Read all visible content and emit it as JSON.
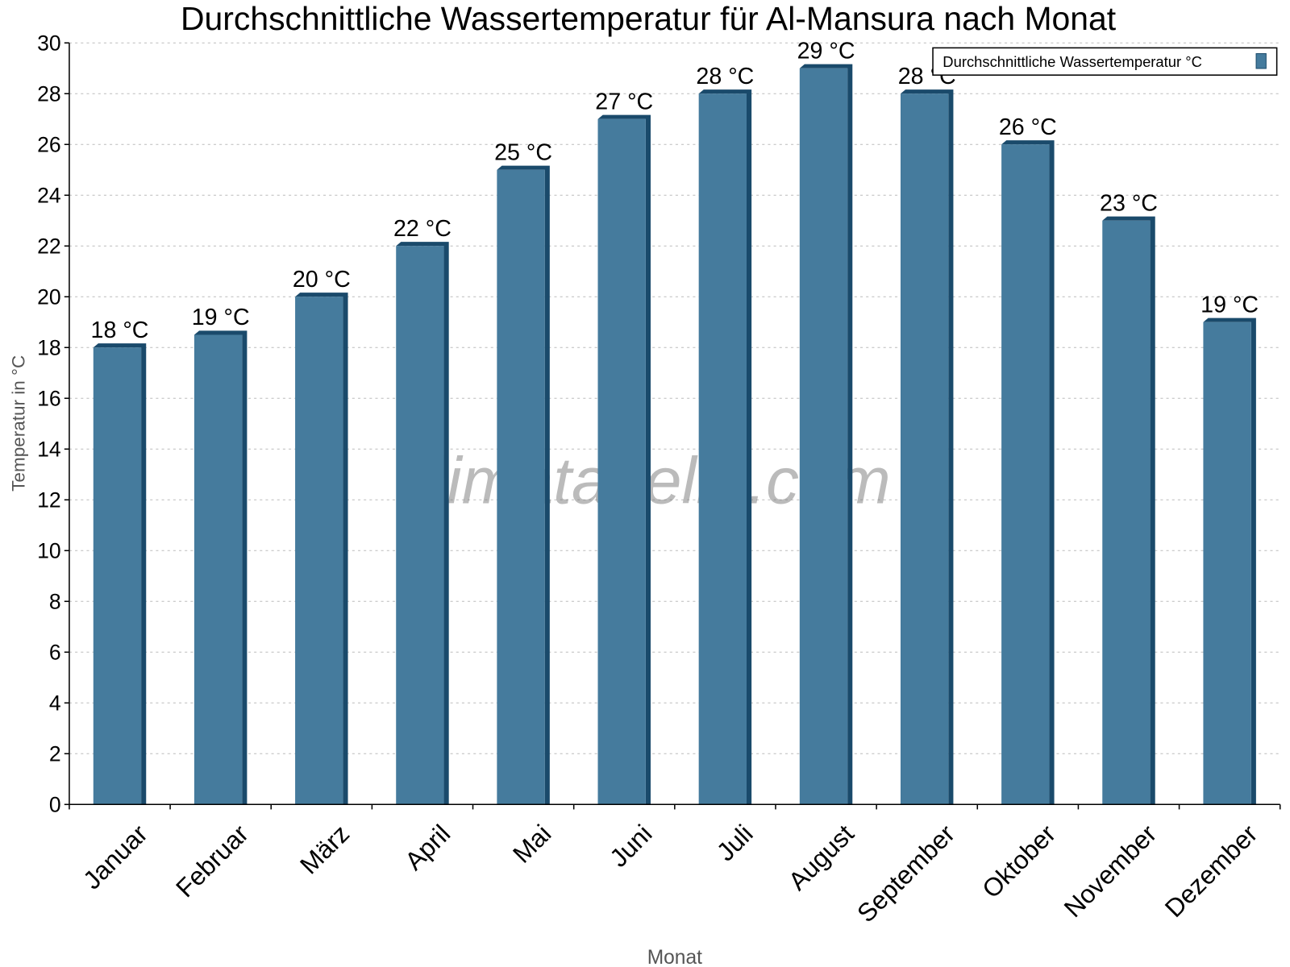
{
  "chart_data": {
    "type": "bar",
    "title": "Durchschnittliche Wassertemperatur für Al-Mansura nach Monat",
    "xlabel": "Monat",
    "ylabel": "Temperatur in °C",
    "ylim": [
      0,
      30
    ],
    "yticks": [
      0,
      2,
      4,
      6,
      8,
      10,
      12,
      14,
      16,
      18,
      20,
      22,
      24,
      26,
      28,
      30
    ],
    "grid": true,
    "legend_placement": "top-right",
    "categories": [
      "Januar",
      "Februar",
      "März",
      "April",
      "Mai",
      "Juni",
      "Juli",
      "August",
      "September",
      "Oktober",
      "November",
      "Dezember"
    ],
    "series": [
      {
        "name": "Durchschnittliche Wassertemperatur °C",
        "values": [
          18,
          18.5,
          20,
          22,
          25,
          27,
          28,
          29,
          28,
          26,
          23,
          19
        ],
        "labels": [
          "18 °C",
          "19 °C",
          "20 °C",
          "22 °C",
          "25 °C",
          "27 °C",
          "28 °C",
          "29 °C",
          "28 °C",
          "26 °C",
          "23 °C",
          "19 °C"
        ],
        "color": "#457b9d",
        "shade_color": "#1a4a6b"
      }
    ],
    "watermark": "klimatabelle.com"
  }
}
